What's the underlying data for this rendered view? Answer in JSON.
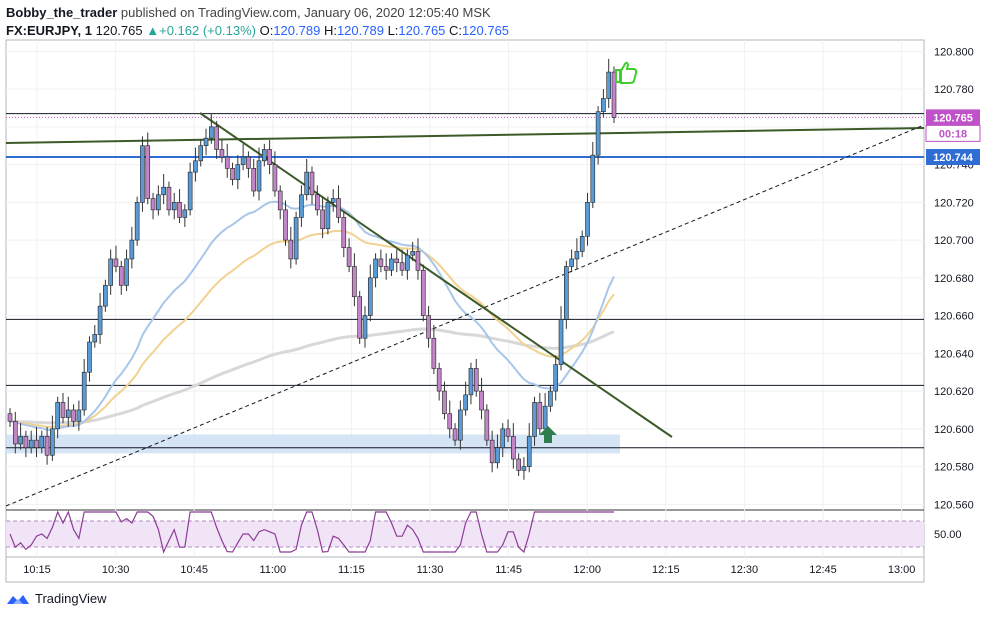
{
  "header": {
    "author": "Bobby_the_trader",
    "published": "published on TradingView.com, January 06, 2020 12:05:40 MSK",
    "symbol": "FX:EURJPY, 1",
    "last": "120.765",
    "change": "+0.162 (+0.13%)",
    "o_label": "O:",
    "o_value": "120.789",
    "h_label": "H:",
    "h_value": "120.789",
    "l_label": "L:",
    "l_value": "120.765",
    "c_label": "C:",
    "c_value": "120.765"
  },
  "footer": {
    "brand": "TradingView"
  },
  "colors": {
    "candle_up": "#5b9bd5",
    "candle_down": "#c285c7",
    "wick": "#333333",
    "ema_blue": "#a8c6ea",
    "ema_gold": "#f2d290",
    "ema_gray": "#d8d8d8",
    "trendline": "#3b5a28",
    "support_zone": "#cfe0f5",
    "rsi_band": "#f1e4f7",
    "rsi_line": "#8c3c96",
    "price_tag": "#c052c9",
    "level_tag": "#2f6dd5"
  },
  "chart_data": {
    "type": "candlestick",
    "x_ticks": [
      "10:15",
      "10:30",
      "10:45",
      "11:00",
      "11:15",
      "11:30",
      "11:45",
      "12:00",
      "12:15",
      "12:30",
      "12:45",
      "13:00"
    ],
    "y_ticks": [
      "120.800",
      "120.780",
      "120.760",
      "120.740",
      "120.720",
      "120.700",
      "120.680",
      "120.660",
      "120.640",
      "120.620",
      "120.600",
      "120.580",
      "120.560"
    ],
    "ylim": [
      120.557,
      120.806
    ],
    "price_tag": "120.765",
    "countdown": "00:18",
    "level_tag": "120.744",
    "horizontal_levels": [
      120.767,
      120.744,
      120.658,
      120.623,
      120.59
    ],
    "rsi_tick": "50.00",
    "candle_closes": [
      120.604,
      120.592,
      120.596,
      120.59,
      120.594,
      120.59,
      120.596,
      120.586,
      120.6,
      120.614,
      120.606,
      120.61,
      120.604,
      120.61,
      120.63,
      120.646,
      120.65,
      120.665,
      120.676,
      120.69,
      120.686,
      120.676,
      120.69,
      120.7,
      120.72,
      120.75,
      120.722,
      120.716,
      120.724,
      120.728,
      120.716,
      120.72,
      120.712,
      120.716,
      120.736,
      120.742,
      120.75,
      120.754,
      120.76,
      120.748,
      120.744,
      120.738,
      120.732,
      120.74,
      120.744,
      120.738,
      120.726,
      120.742,
      120.748,
      120.74,
      120.726,
      120.716,
      120.7,
      120.69,
      120.712,
      120.724,
      120.736,
      120.724,
      120.716,
      120.706,
      120.72,
      120.722,
      120.712,
      120.696,
      120.686,
      120.67,
      120.648,
      120.66,
      120.68,
      120.69,
      120.686,
      120.684,
      120.69,
      120.688,
      120.684,
      120.692,
      120.694,
      120.684,
      120.66,
      120.648,
      120.632,
      120.62,
      120.608,
      120.6,
      120.594,
      120.61,
      120.618,
      120.632,
      120.62,
      120.61,
      120.594,
      120.582,
      120.59,
      120.6,
      120.596,
      120.584,
      120.578,
      120.58,
      120.596,
      120.614,
      120.6,
      120.612,
      120.62,
      120.634,
      120.658,
      120.686,
      120.69,
      120.694,
      120.702,
      120.72,
      120.745,
      120.768,
      120.775,
      120.789,
      120.765
    ]
  }
}
